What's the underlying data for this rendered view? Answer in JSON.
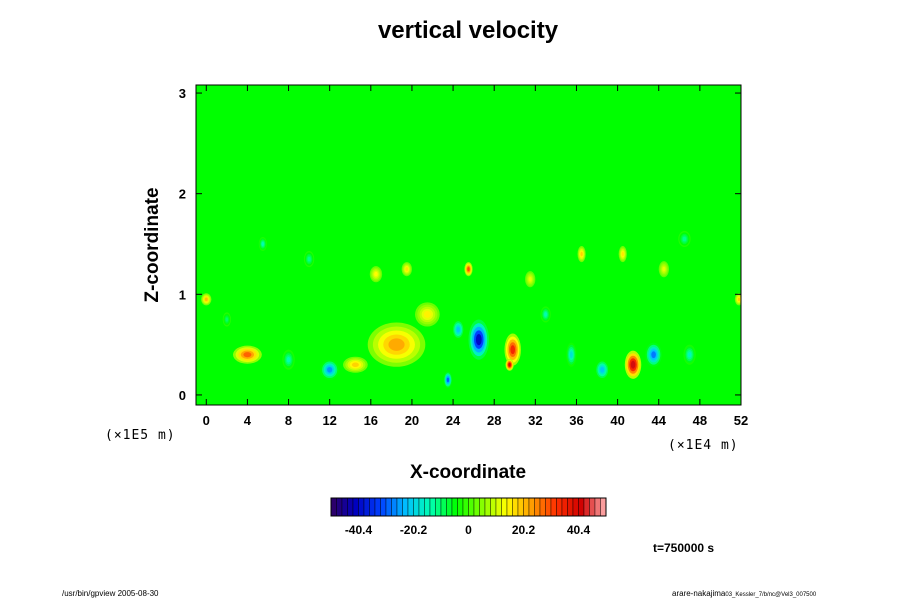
{
  "chart_data": {
    "type": "heatmap",
    "title": "vertical velocity",
    "xlabel": "X-coordinate",
    "ylabel": "Z-coordinate",
    "x_scale_note": "(×1E4 m)",
    "z_scale_note": "(×1E5 m)",
    "xlim": [
      -1,
      52
    ],
    "zlim": [
      -0.1,
      3.08
    ],
    "x_ticks": [
      "0",
      "4",
      "8",
      "12",
      "16",
      "20",
      "24",
      "28",
      "32",
      "36",
      "40",
      "44",
      "48",
      "52"
    ],
    "z_ticks": [
      "0",
      "1",
      "2",
      "3"
    ],
    "colorbar": {
      "ticks": [
        "-40.4",
        "-20.2",
        "0",
        "20.2",
        "40.4"
      ],
      "range": [
        -50.5,
        50.5
      ],
      "colors": [
        "#300060",
        "#0000c0",
        "#0040ff",
        "#00c0ff",
        "#00ffb0",
        "#00ff00",
        "#80ff00",
        "#ffff00",
        "#ffa000",
        "#ff3000",
        "#d00000",
        "#ffb0b0"
      ]
    },
    "background_value": 0,
    "features": [
      {
        "x": 4.0,
        "z": 0.4,
        "value": 28,
        "sx": 1.4,
        "sz": 0.09
      },
      {
        "x": 18.5,
        "z": 0.5,
        "value": 22,
        "sx": 2.8,
        "sz": 0.22
      },
      {
        "x": 14.5,
        "z": 0.3,
        "value": 18,
        "sx": 1.2,
        "sz": 0.08
      },
      {
        "x": 12.0,
        "z": 0.25,
        "value": -26,
        "sx": 0.9,
        "sz": 0.1
      },
      {
        "x": 8.0,
        "z": 0.35,
        "value": -14,
        "sx": 0.6,
        "sz": 0.1
      },
      {
        "x": 26.5,
        "z": 0.55,
        "value": -40,
        "sx": 1.0,
        "sz": 0.2
      },
      {
        "x": 24.5,
        "z": 0.65,
        "value": -22,
        "sx": 0.6,
        "sz": 0.1
      },
      {
        "x": 29.8,
        "z": 0.45,
        "value": 34,
        "sx": 0.8,
        "sz": 0.16
      },
      {
        "x": 29.5,
        "z": 0.3,
        "value": 40,
        "sx": 0.4,
        "sz": 0.06
      },
      {
        "x": 23.5,
        "z": 0.15,
        "value": -30,
        "sx": 0.4,
        "sz": 0.08
      },
      {
        "x": 41.5,
        "z": 0.3,
        "value": 42,
        "sx": 0.8,
        "sz": 0.14
      },
      {
        "x": 43.5,
        "z": 0.4,
        "value": -28,
        "sx": 0.8,
        "sz": 0.12
      },
      {
        "x": 38.5,
        "z": 0.25,
        "value": -22,
        "sx": 0.7,
        "sz": 0.1
      },
      {
        "x": 35.5,
        "z": 0.4,
        "value": -18,
        "sx": 0.5,
        "sz": 0.12
      },
      {
        "x": 21.5,
        "z": 0.8,
        "value": 15,
        "sx": 1.2,
        "sz": 0.12
      },
      {
        "x": 0.0,
        "z": 0.95,
        "value": 20,
        "sx": 0.5,
        "sz": 0.06
      },
      {
        "x": 51.8,
        "z": 0.95,
        "value": 18,
        "sx": 0.4,
        "sz": 0.06
      },
      {
        "x": 25.5,
        "z": 1.25,
        "value": 30,
        "sx": 0.4,
        "sz": 0.07
      },
      {
        "x": 5.5,
        "z": 1.5,
        "value": -14,
        "sx": 0.4,
        "sz": 0.07
      },
      {
        "x": 10.0,
        "z": 1.35,
        "value": -12,
        "sx": 0.5,
        "sz": 0.08
      },
      {
        "x": 16.5,
        "z": 1.2,
        "value": 14,
        "sx": 0.6,
        "sz": 0.08
      },
      {
        "x": 19.5,
        "z": 1.25,
        "value": 16,
        "sx": 0.5,
        "sz": 0.07
      },
      {
        "x": 36.5,
        "z": 1.4,
        "value": 18,
        "sx": 0.4,
        "sz": 0.08
      },
      {
        "x": 40.5,
        "z": 1.4,
        "value": 16,
        "sx": 0.4,
        "sz": 0.08
      },
      {
        "x": 46.5,
        "z": 1.55,
        "value": -12,
        "sx": 0.6,
        "sz": 0.08
      },
      {
        "x": 33.0,
        "z": 0.8,
        "value": -14,
        "sx": 0.5,
        "sz": 0.08
      },
      {
        "x": 47.0,
        "z": 0.4,
        "value": -15,
        "sx": 0.6,
        "sz": 0.1
      },
      {
        "x": 2.0,
        "z": 0.75,
        "value": -10,
        "sx": 0.4,
        "sz": 0.07
      },
      {
        "x": 31.5,
        "z": 1.15,
        "value": 12,
        "sx": 0.5,
        "sz": 0.08
      },
      {
        "x": 44.5,
        "z": 1.25,
        "value": 12,
        "sx": 0.5,
        "sz": 0.08
      }
    ]
  },
  "time_label": "t=750000 s",
  "footer_left": "/usr/bin/gpview 2005-08-30",
  "footer_right_main": "arare-nakajima",
  "footer_right_sub": "03_Kessler_7/b/nc@Vel3_007500"
}
